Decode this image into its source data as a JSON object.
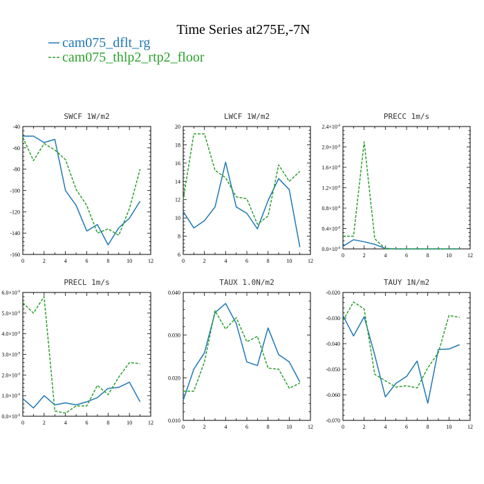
{
  "figure": {
    "title": "Time Series at275E,-7N",
    "legend": [
      {
        "label": "cam075_dflt_rg",
        "color": "#1f77b4",
        "dash": "solid"
      },
      {
        "label": "cam075_thlp2_rtp2_floor",
        "color": "#2ca02c",
        "dash": "dashed"
      }
    ]
  },
  "chart_data": [
    {
      "type": "line",
      "title": "SWCF   1W/m2",
      "x": [
        0,
        1,
        2,
        3,
        4,
        5,
        6,
        7,
        8,
        9,
        10,
        11
      ],
      "xlim": [
        0,
        12
      ],
      "xticks": [
        "0",
        "2",
        "4",
        "6",
        "8",
        "10",
        "12"
      ],
      "ylim": [
        -160,
        -40
      ],
      "yticks": [
        "-160",
        "-140",
        "-120",
        "-100",
        "-80",
        "-60",
        "-40"
      ],
      "series": [
        {
          "values": [
            -49,
            -49,
            -55,
            -52,
            -100,
            -114,
            -138,
            -132,
            -151,
            -135,
            -126,
            -110
          ]
        },
        {
          "values": [
            -50,
            -72,
            -56,
            -62,
            -71,
            -99,
            -114,
            -140,
            -136,
            -142,
            -117,
            -80
          ]
        }
      ]
    },
    {
      "type": "line",
      "title": "LWCF   1W/m2",
      "x": [
        0,
        1,
        2,
        3,
        4,
        5,
        6,
        7,
        8,
        9,
        10,
        11
      ],
      "xlim": [
        0,
        12
      ],
      "xticks": [
        "0",
        "2",
        "4",
        "6",
        "8",
        "10",
        "12"
      ],
      "ylim": [
        6,
        20
      ],
      "yticks": [
        "6",
        "8",
        "10",
        "12",
        "14",
        "16",
        "18",
        "20"
      ],
      "series": [
        {
          "values": [
            10.7,
            8.9,
            9.7,
            11.2,
            16.1,
            11.2,
            10.5,
            8.8,
            11.9,
            14.3,
            13.1,
            6.8
          ]
        },
        {
          "values": [
            12.0,
            19.2,
            19.2,
            15.2,
            14.4,
            12.3,
            12.1,
            9.3,
            10.2,
            15.8,
            14.0,
            15.1
          ]
        }
      ]
    },
    {
      "type": "line",
      "title": "PRECC   1m/s",
      "x": [
        0,
        1,
        2,
        3,
        4,
        5,
        6,
        7,
        8,
        9,
        10,
        11
      ],
      "xlim": [
        0,
        12
      ],
      "xticks": [
        "0",
        "2",
        "4",
        "6",
        "8",
        "10",
        "12"
      ],
      "ylim": [
        0,
        2.4e-08
      ],
      "yticks": [
        {
          "m": "0.0×10",
          "e": "-8"
        },
        {
          "m": "0.4×10",
          "e": "-8"
        },
        {
          "m": "0.8×10",
          "e": "-8"
        },
        {
          "m": "1.2×10",
          "e": "-8"
        },
        {
          "m": "1.6×10",
          "e": "-8"
        },
        {
          "m": "2.0×10",
          "e": "-8"
        },
        {
          "m": "2.4×10",
          "e": "-8"
        }
      ],
      "series": [
        {
          "values": [
            5e-10,
            1.8e-09,
            1.4e-09,
            9e-10,
            1e-10,
            0,
            0,
            0,
            0,
            0,
            0,
            0
          ]
        },
        {
          "values": [
            2.5e-09,
            2.5e-09,
            2.1e-08,
            2e-09,
            0,
            0,
            0,
            0,
            0,
            0,
            0,
            0
          ]
        }
      ]
    },
    {
      "type": "line",
      "title": "PRECL   1m/s",
      "x": [
        0,
        1,
        2,
        3,
        4,
        5,
        6,
        7,
        8,
        9,
        10,
        11
      ],
      "xlim": [
        0,
        12
      ],
      "xticks": [
        "0",
        "2",
        "4",
        "6",
        "8",
        "10",
        "12"
      ],
      "ylim": [
        0,
        6.0
      ],
      "yticks": [
        {
          "m": "0.0×10",
          "e": "-9"
        },
        {
          "m": "1.0×10",
          "e": "-9"
        },
        {
          "m": "2.0×10",
          "e": "-9"
        },
        {
          "m": "3.0×10",
          "e": "-9"
        },
        {
          "m": "4.0×10",
          "e": "-9"
        },
        {
          "m": "5.0×10",
          "e": "-9"
        },
        {
          "m": "6.0×10",
          "e": "-9"
        }
      ],
      "series": [
        {
          "values": [
            0.85,
            0.4,
            1.0,
            0.55,
            0.65,
            0.55,
            0.7,
            0.9,
            1.35,
            1.4,
            1.65,
            0.7
          ]
        },
        {
          "values": [
            5.5,
            5.0,
            5.8,
            0.25,
            0.15,
            0.5,
            0.5,
            1.5,
            1.05,
            1.9,
            2.6,
            2.55
          ]
        }
      ]
    },
    {
      "type": "line",
      "title": "TAUX   1.0N/m2",
      "x": [
        0,
        1,
        2,
        3,
        4,
        5,
        6,
        7,
        8,
        9,
        10,
        11
      ],
      "xlim": [
        0,
        12
      ],
      "xticks": [
        "0",
        "2",
        "4",
        "6",
        "8",
        "10",
        "12"
      ],
      "ylim": [
        0.005,
        0.04
      ],
      "yticks": [
        "0.010",
        "0.020",
        "0.030",
        "0.040"
      ],
      "series": [
        {
          "values": [
            0.0105,
            0.019,
            0.0235,
            0.0345,
            0.037,
            0.0315,
            0.021,
            0.02,
            0.0303,
            0.023,
            0.021,
            0.0155
          ]
        },
        {
          "values": [
            0.013,
            0.013,
            0.021,
            0.035,
            0.03,
            0.0331,
            0.0265,
            0.028,
            0.0193,
            0.019,
            0.0138,
            0.0152
          ]
        }
      ]
    },
    {
      "type": "line",
      "title": "TAUY   1N/m2",
      "x": [
        0,
        1,
        2,
        3,
        4,
        5,
        6,
        7,
        8,
        9,
        10,
        11
      ],
      "xlim": [
        0,
        12
      ],
      "xticks": [
        "0",
        "2",
        "4",
        "6",
        "8",
        "10",
        "12"
      ],
      "ylim": [
        -0.07,
        -0.02
      ],
      "yticks": [
        "-0.070",
        "-0.060",
        "-0.050",
        "-0.040",
        "-0.030",
        "-0.020"
      ],
      "series": [
        {
          "values": [
            -0.029,
            -0.037,
            -0.0295,
            -0.0445,
            -0.0608,
            -0.0555,
            -0.0528,
            -0.0468,
            -0.0633,
            -0.0423,
            -0.0421,
            -0.0404
          ]
        },
        {
          "values": [
            -0.031,
            -0.0237,
            -0.0265,
            -0.052,
            -0.0545,
            -0.057,
            -0.0565,
            -0.0573,
            -0.0495,
            -0.0435,
            -0.029,
            -0.0297
          ]
        }
      ]
    }
  ]
}
